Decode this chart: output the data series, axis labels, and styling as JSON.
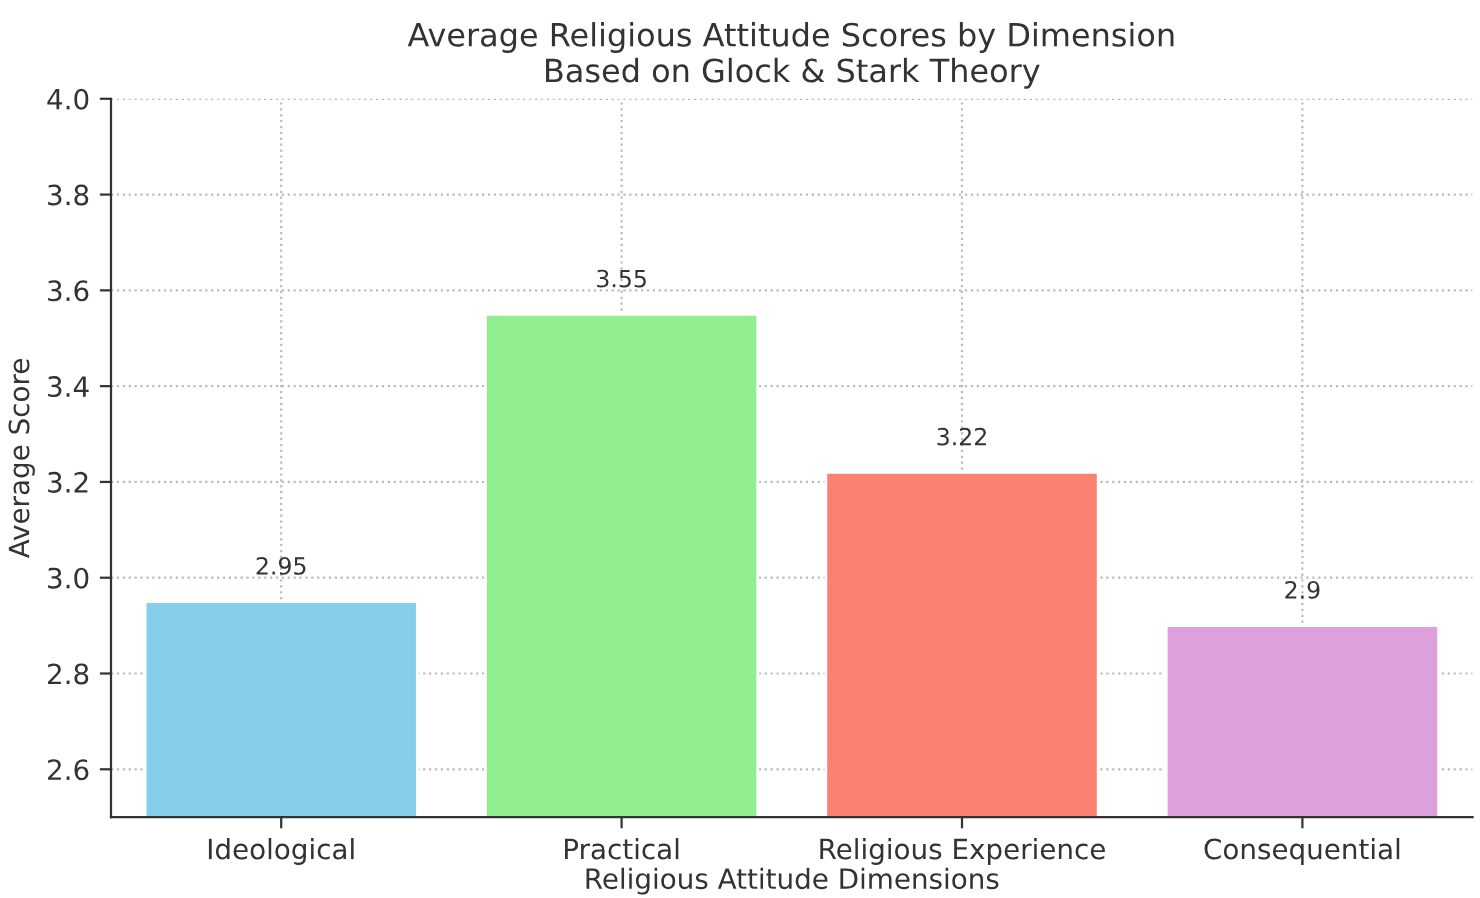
{
  "chart_data": {
    "type": "bar",
    "title": "Average Religious Attitude Scores by Dimension\nBased on Glock & Stark Theory",
    "xlabel": "Religious Attitude Dimensions",
    "ylabel": "Average Score",
    "categories": [
      "Ideological",
      "Practical",
      "Religious Experience",
      "Consequential"
    ],
    "values": [
      2.95,
      3.55,
      3.22,
      2.9
    ],
    "colors": [
      "#87ceeb",
      "#90ee90",
      "#fa8072",
      "#dda0dd"
    ],
    "ylim": [
      2.5,
      4.0
    ],
    "yticks": [
      2.6,
      2.8,
      {
        "value": 3,
        "label": "3.0"
      },
      3.2,
      3.4,
      3.6,
      3.8,
      {
        "value": 4,
        "label": "4.0"
      }
    ],
    "grid": true,
    "data_labels": true
  }
}
